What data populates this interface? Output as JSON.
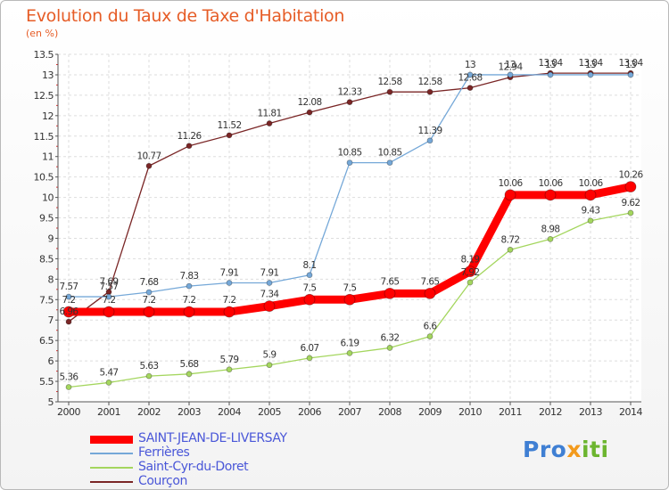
{
  "header": {
    "title": "Evolution du Taux de Taxe d'Habitation",
    "subtitle": "(en %)"
  },
  "logo": {
    "part1": "Pro",
    "part2": "x",
    "part3": "iti"
  },
  "chart_data": {
    "type": "line",
    "title": "Evolution du Taux de Taxe d'Habitation",
    "subtitle": "(en %)",
    "xlabel": "",
    "ylabel": "",
    "x": [
      "2000",
      "2001",
      "2002",
      "2003",
      "2004",
      "2005",
      "2006",
      "2007",
      "2008",
      "2009",
      "2010",
      "2011",
      "2012",
      "2013",
      "2014"
    ],
    "ylim": [
      5,
      13.5
    ],
    "yticks": [
      "5",
      "5.5",
      "6",
      "6.5",
      "7",
      "7.5",
      "8",
      "8.5",
      "9",
      "9.5",
      "10",
      "10.5",
      "11",
      "11.5",
      "12",
      "12.5",
      "13",
      "13.5"
    ],
    "grid": true,
    "legend_position": "bottom-left",
    "series": [
      {
        "name": "SAINT-JEAN-DE-LIVERSAY",
        "color": "#ff0000",
        "values": [
          7.2,
          7.2,
          7.2,
          7.2,
          7.2,
          7.34,
          7.5,
          7.5,
          7.65,
          7.65,
          8.19,
          10.06,
          10.06,
          10.06,
          10.26
        ],
        "labels": [
          "7.2",
          "7.2",
          "7.2",
          "7.2",
          "7.2",
          "7.34",
          "7.5",
          "7.5",
          "7.65",
          "7.65",
          "8.19",
          "10.06",
          "10.06",
          "10.06",
          "10.26"
        ]
      },
      {
        "name": "Ferrières",
        "color": "#75a8d8",
        "values": [
          7.57,
          7.57,
          7.68,
          7.83,
          7.91,
          7.91,
          8.1,
          10.85,
          10.85,
          11.39,
          13,
          13,
          13,
          13,
          13
        ],
        "labels": [
          "7.57",
          "7.57",
          "7.68",
          "7.83",
          "7.91",
          "7.91",
          "8.1",
          "10.85",
          "10.85",
          "11.39",
          "13",
          "13",
          "13",
          "13",
          "13"
        ]
      },
      {
        "name": "Saint-Cyr-du-Doret",
        "color": "#a4d65e",
        "values": [
          5.36,
          5.47,
          5.63,
          5.68,
          5.79,
          5.9,
          6.07,
          6.19,
          6.32,
          6.6,
          7.92,
          8.72,
          8.98,
          9.43,
          9.62
        ],
        "labels": [
          "5.36",
          "5.47",
          "5.63",
          "5.68",
          "5.79",
          "5.9",
          "6.07",
          "6.19",
          "6.32",
          "6.6",
          "7.92",
          "8.72",
          "8.98",
          "9.43",
          "9.62"
        ]
      },
      {
        "name": "Courçon",
        "color": "#7a2626",
        "values": [
          6.96,
          7.69,
          10.77,
          11.26,
          11.52,
          11.81,
          12.08,
          12.33,
          12.58,
          12.58,
          12.68,
          12.94,
          13.04,
          13.04,
          13.04
        ],
        "labels": [
          "6.96",
          "7.69",
          "10.77",
          "11.26",
          "11.52",
          "11.81",
          "12.08",
          "12.33",
          "12.58",
          "12.58",
          "12.68",
          "12.94",
          "13.04",
          "13.04",
          "13.04"
        ]
      }
    ]
  }
}
